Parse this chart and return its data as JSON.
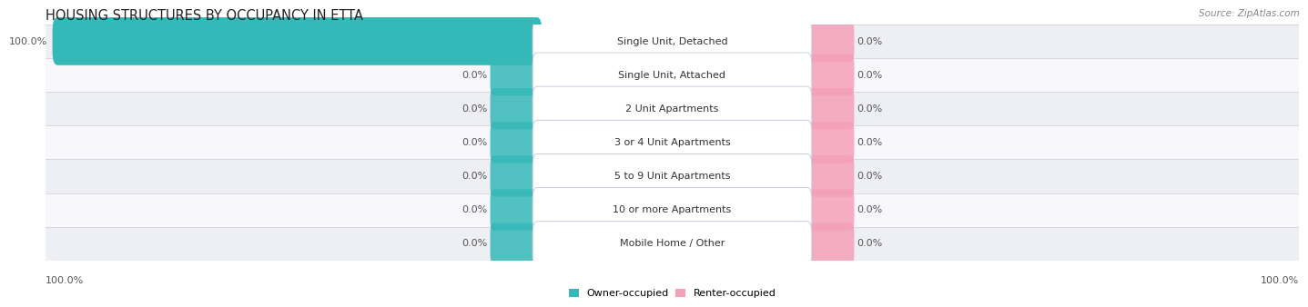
{
  "title": "HOUSING STRUCTURES BY OCCUPANCY IN ETTA",
  "source": "Source: ZipAtlas.com",
  "categories": [
    "Single Unit, Detached",
    "Single Unit, Attached",
    "2 Unit Apartments",
    "3 or 4 Unit Apartments",
    "5 to 9 Unit Apartments",
    "10 or more Apartments",
    "Mobile Home / Other"
  ],
  "owner_values": [
    100.0,
    0.0,
    0.0,
    0.0,
    0.0,
    0.0,
    0.0
  ],
  "renter_values": [
    0.0,
    0.0,
    0.0,
    0.0,
    0.0,
    0.0,
    0.0
  ],
  "owner_color": "#35B8B8",
  "renter_color": "#F4A0B8",
  "row_bg_even": "#EEEEF5",
  "row_bg_odd": "#F8F8FC",
  "title_fontsize": 10.5,
  "source_fontsize": 7.5,
  "label_fontsize": 8.0,
  "tick_fontsize": 8.0,
  "figsize": [
    14.06,
    3.42
  ],
  "dpi": 100
}
